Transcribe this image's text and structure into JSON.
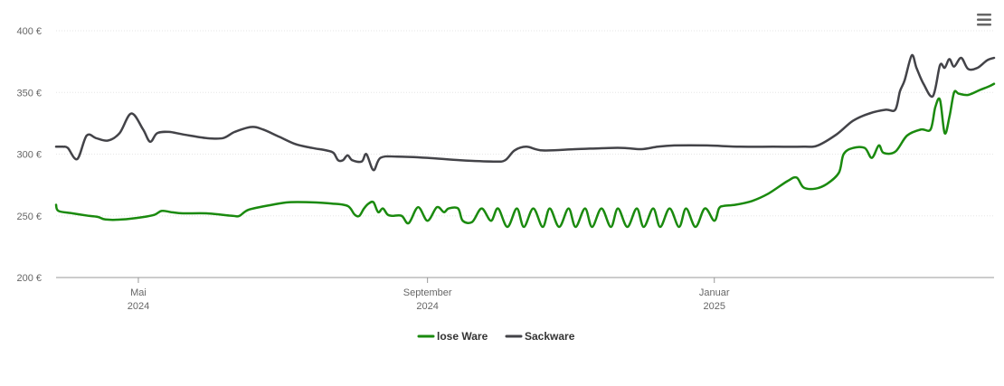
{
  "menu": {
    "icon": "hamburger-menu-icon"
  },
  "chart_data": {
    "type": "line",
    "title": "",
    "xlabel": "",
    "ylabel": "",
    "ylim": [
      200,
      400
    ],
    "yticks": [
      {
        "value": 200,
        "label": "200 €"
      },
      {
        "value": 250,
        "label": "250 €"
      },
      {
        "value": 300,
        "label": "300 €"
      },
      {
        "value": 350,
        "label": "350 €"
      },
      {
        "value": 400,
        "label": "400 €"
      }
    ],
    "xlim": [
      "2024-03-27",
      "2025-04-30"
    ],
    "xticks": [
      {
        "date": "2024-05-01",
        "month": "Mai",
        "year": "2024"
      },
      {
        "date": "2024-09-01",
        "month": "September",
        "year": "2024"
      },
      {
        "date": "2025-01-01",
        "month": "Januar",
        "year": "2025"
      }
    ],
    "grid": true,
    "legend_position": "bottom",
    "series": [
      {
        "name": "lose Ware",
        "color": "#1a8a0e",
        "points": [
          [
            "2024-03-27",
            259
          ],
          [
            "2024-03-28",
            254
          ],
          [
            "2024-04-03",
            252
          ],
          [
            "2024-04-10",
            250
          ],
          [
            "2024-04-14",
            249
          ],
          [
            "2024-04-17",
            247
          ],
          [
            "2024-04-24",
            247
          ],
          [
            "2024-05-03",
            249
          ],
          [
            "2024-05-08",
            251
          ],
          [
            "2024-05-11",
            254
          ],
          [
            "2024-05-15",
            253
          ],
          [
            "2024-05-20",
            252
          ],
          [
            "2024-05-30",
            252
          ],
          [
            "2024-06-10",
            250
          ],
          [
            "2024-06-13",
            250
          ],
          [
            "2024-06-17",
            255
          ],
          [
            "2024-06-27",
            259
          ],
          [
            "2024-07-04",
            261
          ],
          [
            "2024-07-13",
            261
          ],
          [
            "2024-07-22",
            260
          ],
          [
            "2024-07-29",
            258
          ],
          [
            "2024-08-01",
            251
          ],
          [
            "2024-08-03",
            250
          ],
          [
            "2024-08-05",
            256
          ],
          [
            "2024-08-07",
            260
          ],
          [
            "2024-08-09",
            261
          ],
          [
            "2024-08-11",
            253
          ],
          [
            "2024-08-13",
            256
          ],
          [
            "2024-08-15",
            251
          ],
          [
            "2024-08-17",
            250
          ],
          [
            "2024-08-21",
            250
          ],
          [
            "2024-08-24",
            244
          ],
          [
            "2024-08-28",
            257
          ],
          [
            "2024-09-01",
            246
          ],
          [
            "2024-09-05",
            257
          ],
          [
            "2024-09-08",
            253
          ],
          [
            "2024-09-10",
            256
          ],
          [
            "2024-09-14",
            256
          ],
          [
            "2024-09-16",
            246
          ],
          [
            "2024-09-20",
            245
          ],
          [
            "2024-09-24",
            256
          ],
          [
            "2024-09-28",
            246
          ],
          [
            "2024-10-01",
            256
          ],
          [
            "2024-10-05",
            241
          ],
          [
            "2024-10-09",
            256
          ],
          [
            "2024-10-12",
            241
          ],
          [
            "2024-10-16",
            256
          ],
          [
            "2024-10-20",
            241
          ],
          [
            "2024-10-23",
            256
          ],
          [
            "2024-10-27",
            241
          ],
          [
            "2024-10-31",
            256
          ],
          [
            "2024-11-03",
            241
          ],
          [
            "2024-11-07",
            256
          ],
          [
            "2024-11-10",
            241
          ],
          [
            "2024-11-14",
            256
          ],
          [
            "2024-11-18",
            241
          ],
          [
            "2024-11-21",
            256
          ],
          [
            "2024-11-25",
            241
          ],
          [
            "2024-11-29",
            256
          ],
          [
            "2024-12-02",
            241
          ],
          [
            "2024-12-06",
            256
          ],
          [
            "2024-12-09",
            241
          ],
          [
            "2024-12-13",
            256
          ],
          [
            "2024-12-17",
            241
          ],
          [
            "2024-12-20",
            256
          ],
          [
            "2024-12-24",
            241
          ],
          [
            "2024-12-28",
            256
          ],
          [
            "2025-01-01",
            246
          ],
          [
            "2025-01-03",
            256
          ],
          [
            "2025-01-05",
            258
          ],
          [
            "2025-01-10",
            259
          ],
          [
            "2025-01-17",
            262
          ],
          [
            "2025-01-24",
            268
          ],
          [
            "2025-02-01",
            278
          ],
          [
            "2025-02-05",
            281
          ],
          [
            "2025-02-08",
            273
          ],
          [
            "2025-02-13",
            272
          ],
          [
            "2025-02-18",
            276
          ],
          [
            "2025-02-23",
            285
          ],
          [
            "2025-02-25",
            300
          ],
          [
            "2025-03-01",
            305
          ],
          [
            "2025-03-06",
            305
          ],
          [
            "2025-03-09",
            297
          ],
          [
            "2025-03-12",
            307
          ],
          [
            "2025-03-14",
            301
          ],
          [
            "2025-03-19",
            302
          ],
          [
            "2025-03-24",
            315
          ],
          [
            "2025-03-30",
            320
          ],
          [
            "2025-04-03",
            320
          ],
          [
            "2025-04-05",
            338
          ],
          [
            "2025-04-07",
            344
          ],
          [
            "2025-04-09",
            317
          ],
          [
            "2025-04-11",
            330
          ],
          [
            "2025-04-13",
            350
          ],
          [
            "2025-04-15",
            349
          ],
          [
            "2025-04-19",
            348
          ],
          [
            "2025-04-24",
            352
          ],
          [
            "2025-04-28",
            355
          ],
          [
            "2025-04-30",
            357
          ]
        ]
      },
      {
        "name": "Sackware",
        "color": "#434348",
        "points": [
          [
            "2024-03-27",
            306
          ],
          [
            "2024-03-30",
            306
          ],
          [
            "2024-04-01",
            305
          ],
          [
            "2024-04-05",
            296
          ],
          [
            "2024-04-09",
            315
          ],
          [
            "2024-04-13",
            313
          ],
          [
            "2024-04-18",
            311
          ],
          [
            "2024-04-23",
            317
          ],
          [
            "2024-04-28",
            333
          ],
          [
            "2024-05-03",
            320
          ],
          [
            "2024-05-06",
            310
          ],
          [
            "2024-05-09",
            317
          ],
          [
            "2024-05-14",
            318
          ],
          [
            "2024-05-20",
            316
          ],
          [
            "2024-05-30",
            313
          ],
          [
            "2024-06-06",
            313
          ],
          [
            "2024-06-11",
            318
          ],
          [
            "2024-06-18",
            322
          ],
          [
            "2024-06-23",
            320
          ],
          [
            "2024-06-30",
            314
          ],
          [
            "2024-07-07",
            308
          ],
          [
            "2024-07-14",
            305
          ],
          [
            "2024-07-20",
            303
          ],
          [
            "2024-07-23",
            301
          ],
          [
            "2024-07-25",
            295
          ],
          [
            "2024-07-27",
            295
          ],
          [
            "2024-07-29",
            299
          ],
          [
            "2024-07-31",
            295
          ],
          [
            "2024-08-04",
            294
          ],
          [
            "2024-08-06",
            300
          ],
          [
            "2024-08-09",
            287
          ],
          [
            "2024-08-12",
            297
          ],
          [
            "2024-08-19",
            298
          ],
          [
            "2024-09-01",
            297
          ],
          [
            "2024-09-15",
            295
          ],
          [
            "2024-09-29",
            294
          ],
          [
            "2024-10-04",
            295
          ],
          [
            "2024-10-08",
            303
          ],
          [
            "2024-10-13",
            306
          ],
          [
            "2024-10-20",
            303
          ],
          [
            "2024-11-03",
            304
          ],
          [
            "2024-11-17",
            305
          ],
          [
            "2024-11-24",
            305
          ],
          [
            "2024-12-01",
            304
          ],
          [
            "2024-12-08",
            306
          ],
          [
            "2024-12-15",
            307
          ],
          [
            "2024-12-29",
            307
          ],
          [
            "2025-01-12",
            306
          ],
          [
            "2025-01-26",
            306
          ],
          [
            "2025-02-08",
            306
          ],
          [
            "2025-02-14",
            307
          ],
          [
            "2025-02-22",
            316
          ],
          [
            "2025-03-01",
            327
          ],
          [
            "2025-03-08",
            333
          ],
          [
            "2025-03-15",
            336
          ],
          [
            "2025-03-19",
            336
          ],
          [
            "2025-03-21",
            351
          ],
          [
            "2025-03-23",
            360
          ],
          [
            "2025-03-26",
            380
          ],
          [
            "2025-03-28",
            370
          ],
          [
            "2025-03-31",
            357
          ],
          [
            "2025-04-04",
            347
          ],
          [
            "2025-04-07",
            372
          ],
          [
            "2025-04-09",
            370
          ],
          [
            "2025-04-11",
            377
          ],
          [
            "2025-04-13",
            371
          ],
          [
            "2025-04-16",
            378
          ],
          [
            "2025-04-19",
            369
          ],
          [
            "2025-04-23",
            370
          ],
          [
            "2025-04-27",
            376
          ],
          [
            "2025-04-30",
            378
          ]
        ]
      }
    ]
  }
}
